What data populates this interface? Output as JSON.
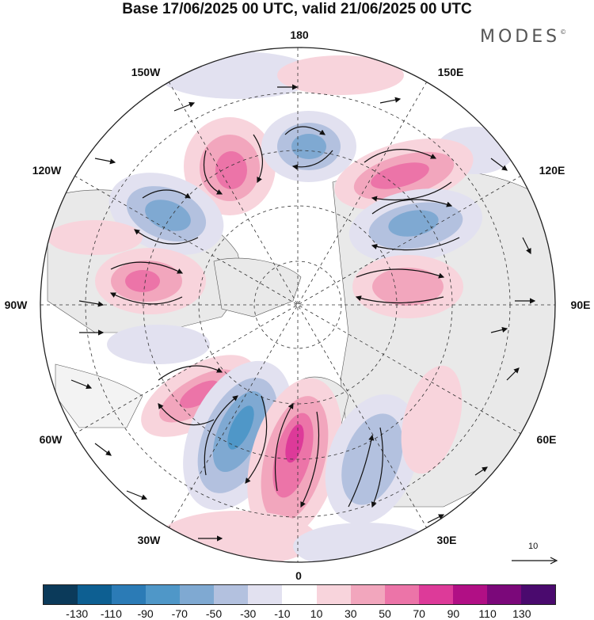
{
  "title": "Base 17/06/2025 00 UTC, valid 21/06/2025 00 UTC",
  "brand": "MODES",
  "brand_mark": "©",
  "longitude_labels": [
    "180",
    "150E",
    "120E",
    "90E",
    "60E",
    "30E",
    "0",
    "30W",
    "60W",
    "90W",
    "120W",
    "150W"
  ],
  "reference_vector": "10",
  "colorbar": {
    "colors": [
      "#0b3a5a",
      "#0d5f92",
      "#2b7bb6",
      "#4f97c8",
      "#7fa9d2",
      "#b3c1df",
      "#e2e1f0",
      "#ffffff",
      "#f8d4dc",
      "#f2a6bd",
      "#ec74a8",
      "#dd3a99",
      "#b10f85",
      "#7b087a",
      "#4a0a6e"
    ],
    "labels": [
      "-130",
      "-110",
      "-90",
      "-70",
      "-50",
      "-30",
      "-10",
      "10",
      "30",
      "50",
      "70",
      "90",
      "110",
      "130"
    ]
  }
}
